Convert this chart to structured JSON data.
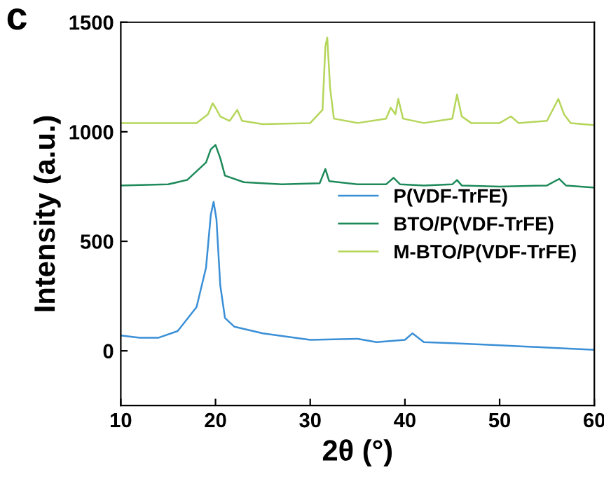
{
  "chart_data": {
    "type": "line",
    "xlabel": "2θ (°)",
    "ylabel": "Intensity (a.u.)",
    "annotations": [
      "c"
    ],
    "xlim": [
      10,
      60
    ],
    "xticks": [
      10,
      20,
      30,
      40,
      50,
      60
    ],
    "ylim": [
      -250,
      1500
    ],
    "yticks": [
      0,
      500,
      1000,
      1500
    ],
    "grid": false,
    "legend": "right",
    "marker": "none",
    "line_style": "solid",
    "series": [
      {
        "name": "P(VDF-TrFE)",
        "color": "#3a8fd6",
        "x": [
          10,
          12,
          14,
          16,
          18,
          19,
          19.5,
          19.8,
          20.1,
          20.5,
          21,
          22,
          25,
          30,
          35,
          37,
          40,
          40.8,
          42,
          45,
          50,
          55,
          60
        ],
        "values": [
          70,
          60,
          60,
          90,
          200,
          380,
          620,
          680,
          600,
          300,
          150,
          110,
          80,
          50,
          55,
          40,
          50,
          80,
          40,
          35,
          25,
          15,
          5
        ]
      },
      {
        "name": "BTO/P(VDF-TrFE)",
        "color": "#1e8a5a",
        "x": [
          10,
          15,
          17,
          19,
          19.5,
          20,
          20.5,
          21,
          23,
          27,
          31,
          31.6,
          32,
          35,
          38,
          38.8,
          39.5,
          42,
          45,
          45.5,
          46,
          50,
          55,
          56.3,
          57,
          60
        ],
        "values": [
          755,
          760,
          780,
          860,
          920,
          940,
          880,
          800,
          770,
          760,
          765,
          830,
          775,
          760,
          760,
          790,
          760,
          755,
          760,
          780,
          755,
          750,
          755,
          785,
          755,
          745
        ]
      },
      {
        "name": "M-BTO/P(VDF-TrFE)",
        "color": "#b5d65a",
        "x": [
          10,
          18,
          19.2,
          19.7,
          20,
          20.5,
          21.5,
          22.3,
          22.8,
          25,
          30,
          31.3,
          31.6,
          31.8,
          32.1,
          32.5,
          35,
          38,
          38.5,
          39,
          39.3,
          39.8,
          42,
          45,
          45.5,
          46,
          47,
          50,
          51.2,
          52,
          55,
          56.2,
          56.8,
          57.5,
          60
        ],
        "values": [
          1040,
          1040,
          1080,
          1130,
          1110,
          1070,
          1050,
          1100,
          1050,
          1035,
          1040,
          1100,
          1390,
          1430,
          1200,
          1060,
          1040,
          1060,
          1110,
          1080,
          1150,
          1060,
          1040,
          1060,
          1170,
          1070,
          1040,
          1040,
          1070,
          1040,
          1050,
          1150,
          1080,
          1040,
          1030
        ]
      }
    ]
  }
}
